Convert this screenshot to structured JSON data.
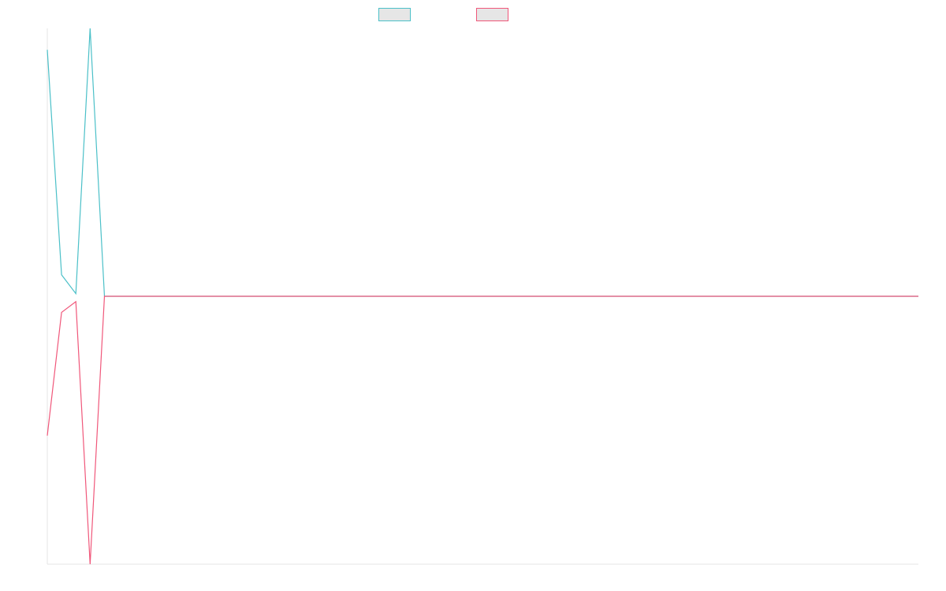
{
  "chart_data": {
    "type": "line",
    "title": "",
    "xlabel": "",
    "ylabel": "",
    "grid": false,
    "legend_position": "top-center",
    "x": [
      0,
      1,
      2,
      3,
      4,
      5,
      6,
      7,
      8,
      9,
      10,
      11,
      12,
      13,
      14,
      15,
      16,
      17,
      18,
      19,
      20,
      21,
      22,
      23,
      24,
      25,
      26,
      27,
      28,
      29,
      30,
      31,
      32,
      33,
      34,
      35,
      36,
      37,
      38,
      39,
      40,
      41,
      42,
      43,
      44,
      45,
      46,
      47,
      48,
      49,
      50,
      51,
      52,
      53,
      54,
      55,
      56,
      57,
      58,
      59,
      60,
      61
    ],
    "xlim": [
      0,
      61
    ],
    "ylim": [
      -1,
      1
    ],
    "series": [
      {
        "color": "#4bc0c8",
        "values": [
          0.92,
          0.08,
          0.01,
          1.0,
          0,
          0,
          0,
          0,
          0,
          0,
          0,
          0,
          0,
          0,
          0,
          0,
          0,
          0,
          0,
          0,
          0,
          0,
          0,
          0,
          0,
          0,
          0,
          0,
          0,
          0,
          0,
          0,
          0,
          0,
          0,
          0,
          0,
          0,
          0,
          0,
          0,
          0,
          0,
          0,
          0,
          0,
          0,
          0,
          0,
          0,
          0,
          0,
          0,
          0,
          0,
          0,
          0,
          0,
          0,
          0,
          0,
          0
        ]
      },
      {
        "color": "#f0577a",
        "values": [
          -0.52,
          -0.06,
          -0.02,
          -1.0,
          0,
          0,
          0,
          0,
          0,
          0,
          0,
          0,
          0,
          0,
          0,
          0,
          0,
          0,
          0,
          0,
          0,
          0,
          0,
          0,
          0,
          0,
          0,
          0,
          0,
          0,
          0,
          0,
          0,
          0,
          0,
          0,
          0,
          0,
          0,
          0,
          0,
          0,
          0,
          0,
          0,
          0,
          0,
          0,
          0,
          0,
          0,
          0,
          0,
          0,
          0,
          0,
          0,
          0,
          0,
          0,
          0,
          0
        ]
      }
    ]
  }
}
